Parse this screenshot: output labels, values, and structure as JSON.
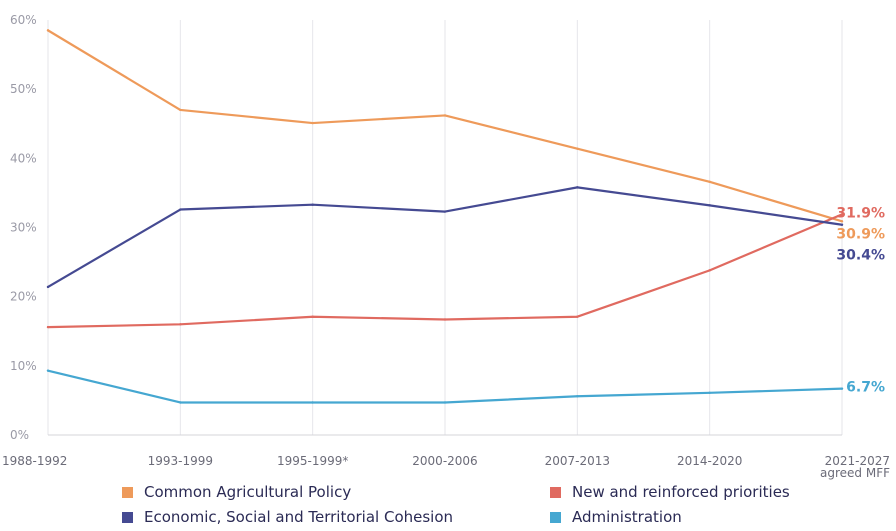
{
  "chart_data": {
    "type": "line",
    "categories": [
      "1988-1992",
      "1993-1999",
      "1995-1999*",
      "2000-2006",
      "2007-2013",
      "2014-2020",
      "2021-2027"
    ],
    "category_sublabels": [
      "",
      "",
      "",
      "",
      "",
      "",
      "agreed MFF"
    ],
    "y_unit": "%",
    "ylim": [
      0,
      60
    ],
    "yticks": [
      0,
      10,
      20,
      30,
      40,
      50,
      60
    ],
    "ytick_labels": [
      "0%",
      "10%",
      "20%",
      "30%",
      "40%",
      "50%",
      "60%"
    ],
    "grid": "vertical",
    "legend_position": "bottom",
    "series": [
      {
        "name": "Common Agricultural Policy",
        "color": "#ee9a5a",
        "values": [
          58.5,
          47.0,
          45.1,
          46.2,
          41.4,
          36.6,
          30.9
        ],
        "end_label": "30.9%"
      },
      {
        "name": "New and reinforced priorities",
        "color": "#e06a60",
        "values": [
          15.6,
          16.0,
          17.1,
          16.7,
          17.1,
          23.8,
          31.9
        ],
        "end_label": "31.9%"
      },
      {
        "name": "Economic, Social and Territorial Cohesion",
        "color": "#454a92",
        "values": [
          21.4,
          32.6,
          33.3,
          32.3,
          35.8,
          33.2,
          30.4
        ],
        "end_label": "30.4%"
      },
      {
        "name": "Administration",
        "color": "#45a7d1",
        "values": [
          9.3,
          4.7,
          4.7,
          4.7,
          5.6,
          6.1,
          6.7
        ],
        "end_label": "6.7%"
      }
    ]
  }
}
